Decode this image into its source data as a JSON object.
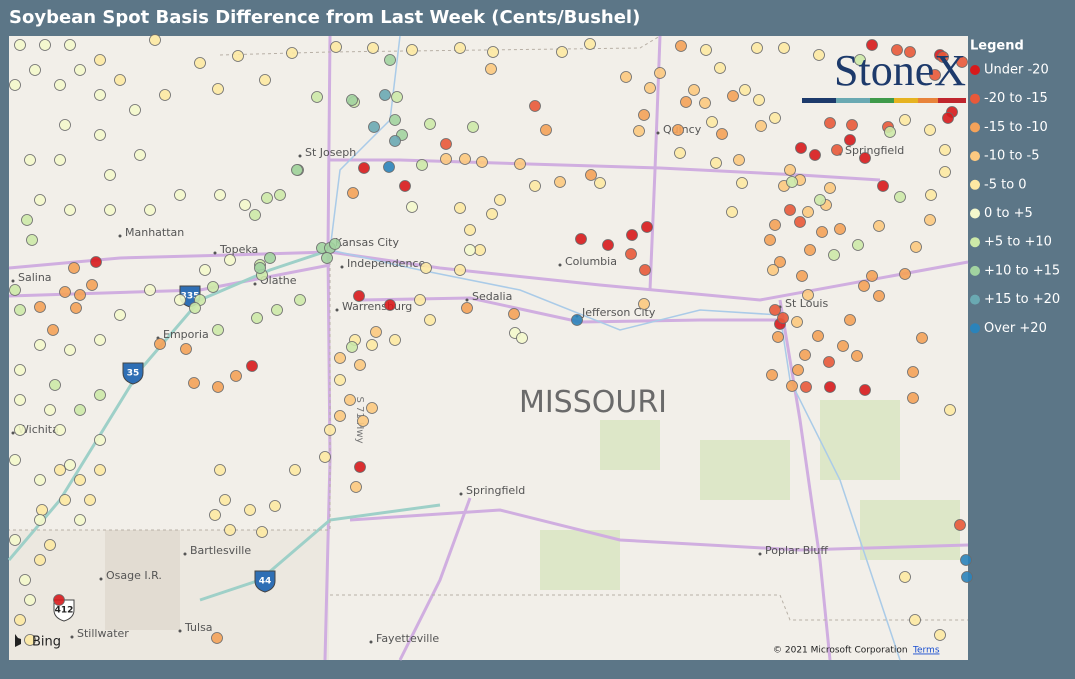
{
  "header": {
    "title": "Soybean Spot Basis Difference from Last Week (Cents/Bushel)"
  },
  "legend": {
    "title": "Legend",
    "items": [
      {
        "label": "Under -20",
        "color": "#d7191c"
      },
      {
        "label": "-20 to -15",
        "color": "#e8593a"
      },
      {
        "label": "-15 to -10",
        "color": "#f4a259"
      },
      {
        "label": "-10 to -5",
        "color": "#fcc980"
      },
      {
        "label": "-5 to 0",
        "color": "#fde9a3"
      },
      {
        "label": "0 to +5",
        "color": "#f4f8cc"
      },
      {
        "label": "+5 to +10",
        "color": "#cde9a8"
      },
      {
        "label": "+10 to +15",
        "color": "#a2d3a0"
      },
      {
        "label": "+15 to +20",
        "color": "#6aa9b2"
      },
      {
        "label": "Over +20",
        "color": "#2b83ba"
      }
    ]
  },
  "logo": {
    "text": "StoneX"
  },
  "map": {
    "state_label": "MISSOURI",
    "cities": [
      "St Joseph",
      "Kansas City",
      "Independence",
      "Manhattan",
      "Topeka",
      "Olathe",
      "Salina",
      "Emporia",
      "Warrensburg",
      "Sedalia",
      "Columbia",
      "Jefferson City",
      "St Louis",
      "Quincy",
      "Springfield",
      "Wichita",
      "Springfield",
      "Bartlesville",
      "Osage I.R.",
      "Poplar Bluff",
      "Tulsa",
      "Stillwater",
      "Fayetteville"
    ],
    "highways": [
      "335",
      "35",
      "44",
      "412"
    ],
    "road_label": "S 71 Hwy"
  },
  "attribution": {
    "provider": "Bing",
    "copyright": "© 2021 Microsoft Corporation",
    "terms": "Terms"
  }
}
